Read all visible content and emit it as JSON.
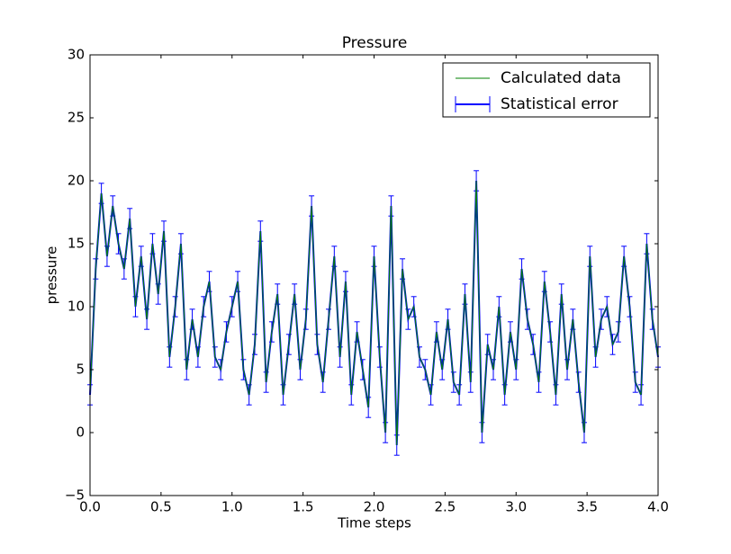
{
  "chart_data": {
    "type": "errorbar",
    "title": "Pressure",
    "x_label": "Time steps",
    "y_label": "pressure",
    "x": [
      0,
      0.04,
      0.08,
      0.12,
      0.16,
      0.2,
      0.24,
      0.28,
      0.32,
      0.36,
      0.4,
      0.44,
      0.48,
      0.52,
      0.56,
      0.6,
      0.64,
      0.68,
      0.72,
      0.76,
      0.8,
      0.84,
      0.88,
      0.92,
      0.96,
      1,
      1.04,
      1.08,
      1.12,
      1.16,
      1.2,
      1.24,
      1.28,
      1.32,
      1.36,
      1.4,
      1.44,
      1.48,
      1.52,
      1.56,
      1.6,
      1.64,
      1.68,
      1.72,
      1.76,
      1.8,
      1.84,
      1.88,
      1.92,
      1.96,
      2,
      2.04,
      2.08,
      2.12,
      2.16,
      2.2,
      2.24,
      2.28,
      2.32,
      2.36,
      2.4,
      2.44,
      2.48,
      2.52,
      2.56,
      2.6,
      2.64,
      2.68,
      2.72,
      2.76,
      2.8,
      2.84,
      2.88,
      2.92,
      2.96,
      3,
      3.04,
      3.08,
      3.12,
      3.16,
      3.2,
      3.24,
      3.28,
      3.32,
      3.36,
      3.4,
      3.44,
      3.48,
      3.52,
      3.56,
      3.6,
      3.64,
      3.68,
      3.72,
      3.76,
      3.8,
      3.84,
      3.88,
      3.92,
      3.96,
      4
    ],
    "values": [
      3,
      13,
      19,
      14,
      18,
      15,
      13,
      17,
      10,
      14,
      9,
      15,
      11,
      16,
      6,
      10,
      15,
      5,
      9,
      6,
      10,
      12,
      6,
      5,
      8,
      10,
      12,
      5,
      3,
      7,
      16,
      4,
      8,
      11,
      3,
      7,
      11,
      5,
      9,
      18,
      7,
      4,
      9,
      14,
      6,
      12,
      3,
      8,
      5,
      2,
      14,
      6,
      0,
      18,
      -1,
      13,
      9,
      10,
      6,
      5,
      3,
      8,
      5,
      9,
      4,
      3,
      11,
      4,
      20,
      0,
      7,
      5,
      10,
      3,
      8,
      5,
      13,
      9,
      7,
      4,
      12,
      8,
      3,
      11,
      5,
      9,
      4,
      0,
      14,
      6,
      9,
      10,
      7,
      8,
      14,
      10,
      4,
      3,
      15,
      9,
      6
    ],
    "error": 0.8,
    "series": [
      {
        "name": "Calculated data",
        "color": "#008000"
      },
      {
        "name": "Statistical error",
        "color": "#0000ff"
      }
    ],
    "xlim": [
      0,
      4
    ],
    "ylim": [
      -5,
      30
    ],
    "xticks": [
      {
        "value": 0,
        "label": "0.0"
      },
      {
        "value": 0.5,
        "label": "0.5"
      },
      {
        "value": 1,
        "label": "1.0"
      },
      {
        "value": 1.5,
        "label": "1.5"
      },
      {
        "value": 2,
        "label": "2.0"
      },
      {
        "value": 2.5,
        "label": "2.5"
      },
      {
        "value": 3,
        "label": "3.0"
      },
      {
        "value": 3.5,
        "label": "3.5"
      },
      {
        "value": 4,
        "label": "4.0"
      }
    ],
    "yticks": [
      {
        "value": -5,
        "label": "−5"
      },
      0,
      5,
      10,
      15,
      20,
      25,
      30
    ],
    "legend": "upper right"
  }
}
